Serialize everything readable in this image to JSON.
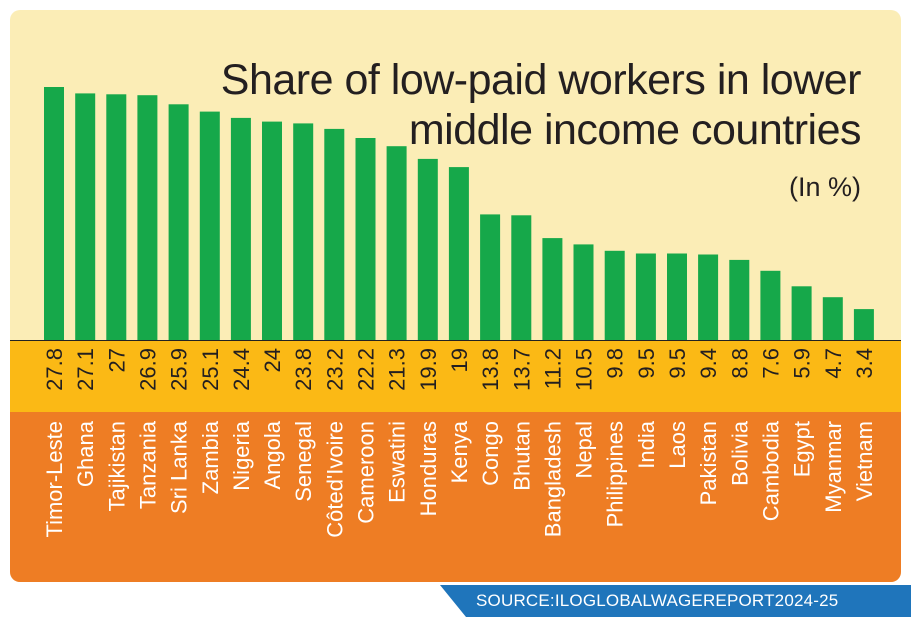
{
  "title_line1": "Share of low-paid workers in lower",
  "title_line2": "middle income countries",
  "unit": "(In %)",
  "source": "SOURCE:ILOGLOBALWAGEREPORT2024-25",
  "colors": {
    "card_background": "#fbedb6",
    "bar": "#16a84a",
    "value_band": "#fbb915",
    "name_band": "#ee7d24",
    "source_bar": "#1f75bb"
  },
  "chart_data": {
    "type": "bar",
    "title": "Share of low-paid workers in lower middle income countries",
    "ylabel": "(In %)",
    "ylim": [
      0,
      30
    ],
    "grid": false,
    "categories": [
      "Timor-Leste",
      "Ghana",
      "Tajikistan",
      "Tanzania",
      "Sri Lanka",
      "Zambia",
      "Nigeria",
      "Angola",
      "Senegal",
      "Côted'Ivoire",
      "Cameroon",
      "Eswatini",
      "Honduras",
      "Kenya",
      "Congo",
      "Bhutan",
      "Bangladesh",
      "Nepal",
      "Philippines",
      "India",
      "Laos",
      "Pakistan",
      "Bolivia",
      "Cambodia",
      "Egypt",
      "Myanmar",
      "Vietnam"
    ],
    "values": [
      27.8,
      27.1,
      27,
      26.9,
      25.9,
      25.1,
      24.4,
      24,
      23.8,
      23.2,
      22.2,
      21.3,
      19.9,
      19,
      13.8,
      13.7,
      11.2,
      10.5,
      9.8,
      9.5,
      9.5,
      9.4,
      8.8,
      7.6,
      5.9,
      4.7,
      3.4
    ]
  }
}
